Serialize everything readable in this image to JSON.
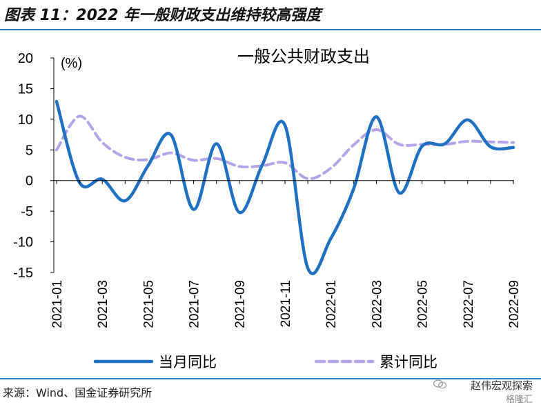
{
  "figure": {
    "title": "图表 11：2022 年一般财政支出维持较高强度",
    "source": "来源：Wind、国金证券研究所",
    "watermark_line1": "赵伟宏观探索",
    "watermark_line2": "格隆汇"
  },
  "chart_data": {
    "type": "line",
    "title": "一般公共财政支出",
    "unit_label": "(%)",
    "xlabel": "",
    "ylabel": "",
    "ylim": [
      -15,
      20
    ],
    "yticks": [
      "20",
      "15",
      "10",
      "5",
      "0",
      "-5",
      "-10",
      "-15"
    ],
    "ytick_values": [
      20,
      15,
      10,
      5,
      0,
      -5,
      -10,
      -15
    ],
    "x": [
      "2021-01",
      "2021-02",
      "2021-03",
      "2021-04",
      "2021-05",
      "2021-06",
      "2021-07",
      "2021-08",
      "2021-09",
      "2021-10",
      "2021-11",
      "2021-12",
      "2022-01",
      "2022-02",
      "2022-03",
      "2022-04",
      "2022-05",
      "2022-06",
      "2022-07",
      "2022-08",
      "2022-09"
    ],
    "xtick_labels": [
      "2021-01",
      "2021-03",
      "2021-05",
      "2021-07",
      "2021-09",
      "2021-11",
      "2022-01",
      "2022-03",
      "2022-05",
      "2022-07",
      "2022-09"
    ],
    "xtick_indices": [
      0,
      2,
      4,
      6,
      8,
      10,
      12,
      14,
      16,
      18,
      20
    ],
    "grid": false,
    "legend_position": "bottom",
    "series": [
      {
        "name": "当月同比",
        "color": "#1f6fc2",
        "style": "solid",
        "values": [
          12.9,
          -0.3,
          0.2,
          -3.3,
          2.4,
          7.5,
          -4.7,
          6.0,
          -5.2,
          2.5,
          9.0,
          -14.3,
          -9.5,
          -1.4,
          10.4,
          -2.0,
          5.6,
          6.0,
          9.9,
          5.5,
          5.4
        ]
      },
      {
        "name": "累计同比",
        "color": "#b4a3e8",
        "style": "dashed",
        "values": [
          5.0,
          10.5,
          6.2,
          3.8,
          3.4,
          4.5,
          3.3,
          3.6,
          2.3,
          2.4,
          2.9,
          0.3,
          2.0,
          5.8,
          8.3,
          5.9,
          5.9,
          5.9,
          6.4,
          6.3,
          6.2
        ]
      }
    ]
  }
}
